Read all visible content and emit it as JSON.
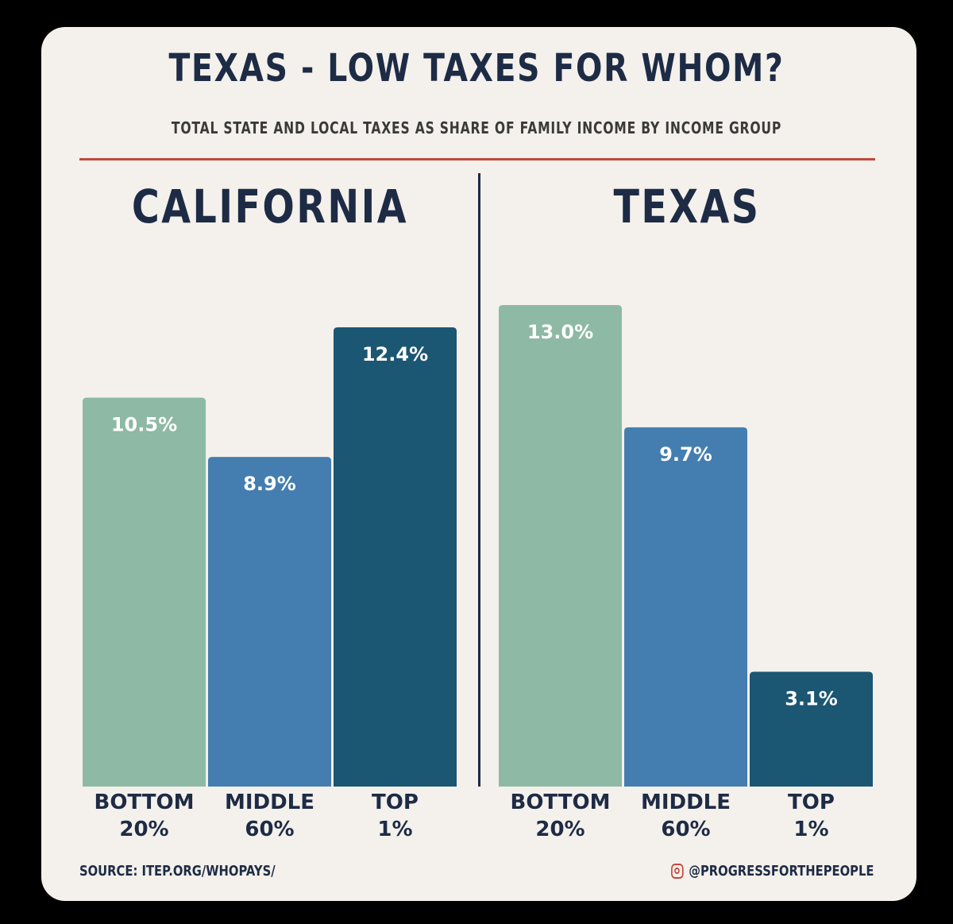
{
  "title": "TEXAS - LOW TAXES FOR WHOM?",
  "subtitle": "TOTAL STATE AND LOCAL TAXES AS SHARE OF FAMILY INCOME BY INCOME GROUP",
  "source": "SOURCE: ITEP.ORG/WHOPAYS/",
  "handle": "@PROGRESSFORTHEPEOPLE",
  "icon": "instagram-icon",
  "colors": {
    "background": "#f4f0eb",
    "title": "#1d2b45",
    "rule": "#c2473c",
    "bottom": "#8eb9a4",
    "middle": "#447eb0",
    "top": "#1b5673"
  },
  "chart_data": [
    {
      "type": "bar",
      "title": "CALIFORNIA",
      "categories": [
        {
          "line1": "BOTTOM",
          "line2": "20%"
        },
        {
          "line1": "MIDDLE",
          "line2": "60%"
        },
        {
          "line1": "TOP",
          "line2": "1%"
        }
      ],
      "values": [
        10.5,
        8.9,
        12.4
      ],
      "labels": [
        "10.5%",
        "8.9%",
        "12.4%"
      ],
      "ylim": [
        0,
        13.3
      ]
    },
    {
      "type": "bar",
      "title": "TEXAS",
      "categories": [
        {
          "line1": "BOTTOM",
          "line2": "20%"
        },
        {
          "line1": "MIDDLE",
          "line2": "60%"
        },
        {
          "line1": "TOP",
          "line2": "1%"
        }
      ],
      "values": [
        13.0,
        9.7,
        3.1
      ],
      "labels": [
        "13.0%",
        "9.7%",
        "3.1%"
      ],
      "ylim": [
        0,
        13.3
      ]
    }
  ]
}
